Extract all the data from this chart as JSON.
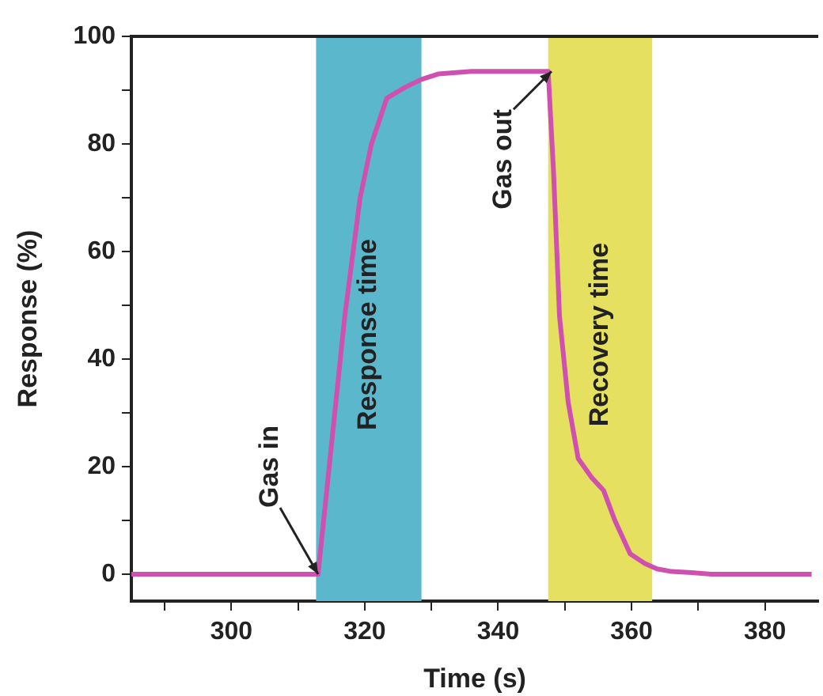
{
  "chart_data": {
    "type": "line",
    "xlabel": "Time (s)",
    "ylabel": "Response (%)",
    "x": [
      285,
      290,
      295,
      300,
      305,
      310,
      313,
      315,
      317,
      319.3,
      321,
      323.3,
      326,
      328.5,
      331,
      336,
      340,
      344,
      347.5,
      348.3,
      349.2,
      350.5,
      352,
      354,
      355.8,
      357.5,
      359.8,
      362,
      363.8,
      366,
      369,
      372,
      376,
      380,
      384,
      387
    ],
    "series": [
      {
        "color": "#d050b0",
        "values": [
          0,
          0,
          0,
          0,
          0,
          0,
          0,
          24,
          48,
          70,
          80,
          88.5,
          90.5,
          92,
          93,
          93.5,
          93.5,
          93.5,
          93.5,
          75,
          48,
          32,
          21.5,
          18,
          15.6,
          10,
          3.8,
          2,
          1,
          0.5,
          0.3,
          0,
          0,
          0,
          0,
          0
        ]
      }
    ],
    "xlim": [
      285,
      388
    ],
    "ylim": [
      -5,
      100
    ],
    "xticks": [
      {
        "value": 290,
        "label": null
      },
      300,
      {
        "value": 310,
        "label": null
      },
      320,
      {
        "value": 330,
        "label": null
      },
      340,
      {
        "value": 350,
        "label": null
      },
      360,
      {
        "value": 370,
        "label": null
      },
      380
    ],
    "yticks": [
      0,
      {
        "value": 10,
        "label": null
      },
      20,
      {
        "value": 30,
        "label": null
      },
      40,
      {
        "value": 50,
        "label": null
      },
      60,
      {
        "value": 70,
        "label": null
      },
      80,
      {
        "value": 90,
        "label": null
      },
      100
    ],
    "bands": [
      {
        "axis": "x",
        "from": 312.7,
        "to": 328.5,
        "label": "Response time",
        "color": "#5bb8cc"
      },
      {
        "axis": "x",
        "from": 347.5,
        "to": 363.1,
        "label": "Recovery time",
        "color": "#e6e060"
      }
    ],
    "annotations": [
      {
        "text": "Gas in",
        "x": 313,
        "y": 0
      },
      {
        "text": "Gas out",
        "x": 348,
        "y": 93.5
      }
    ],
    "grid": false,
    "legend": false,
    "marker": "none",
    "line_style": "solid"
  }
}
